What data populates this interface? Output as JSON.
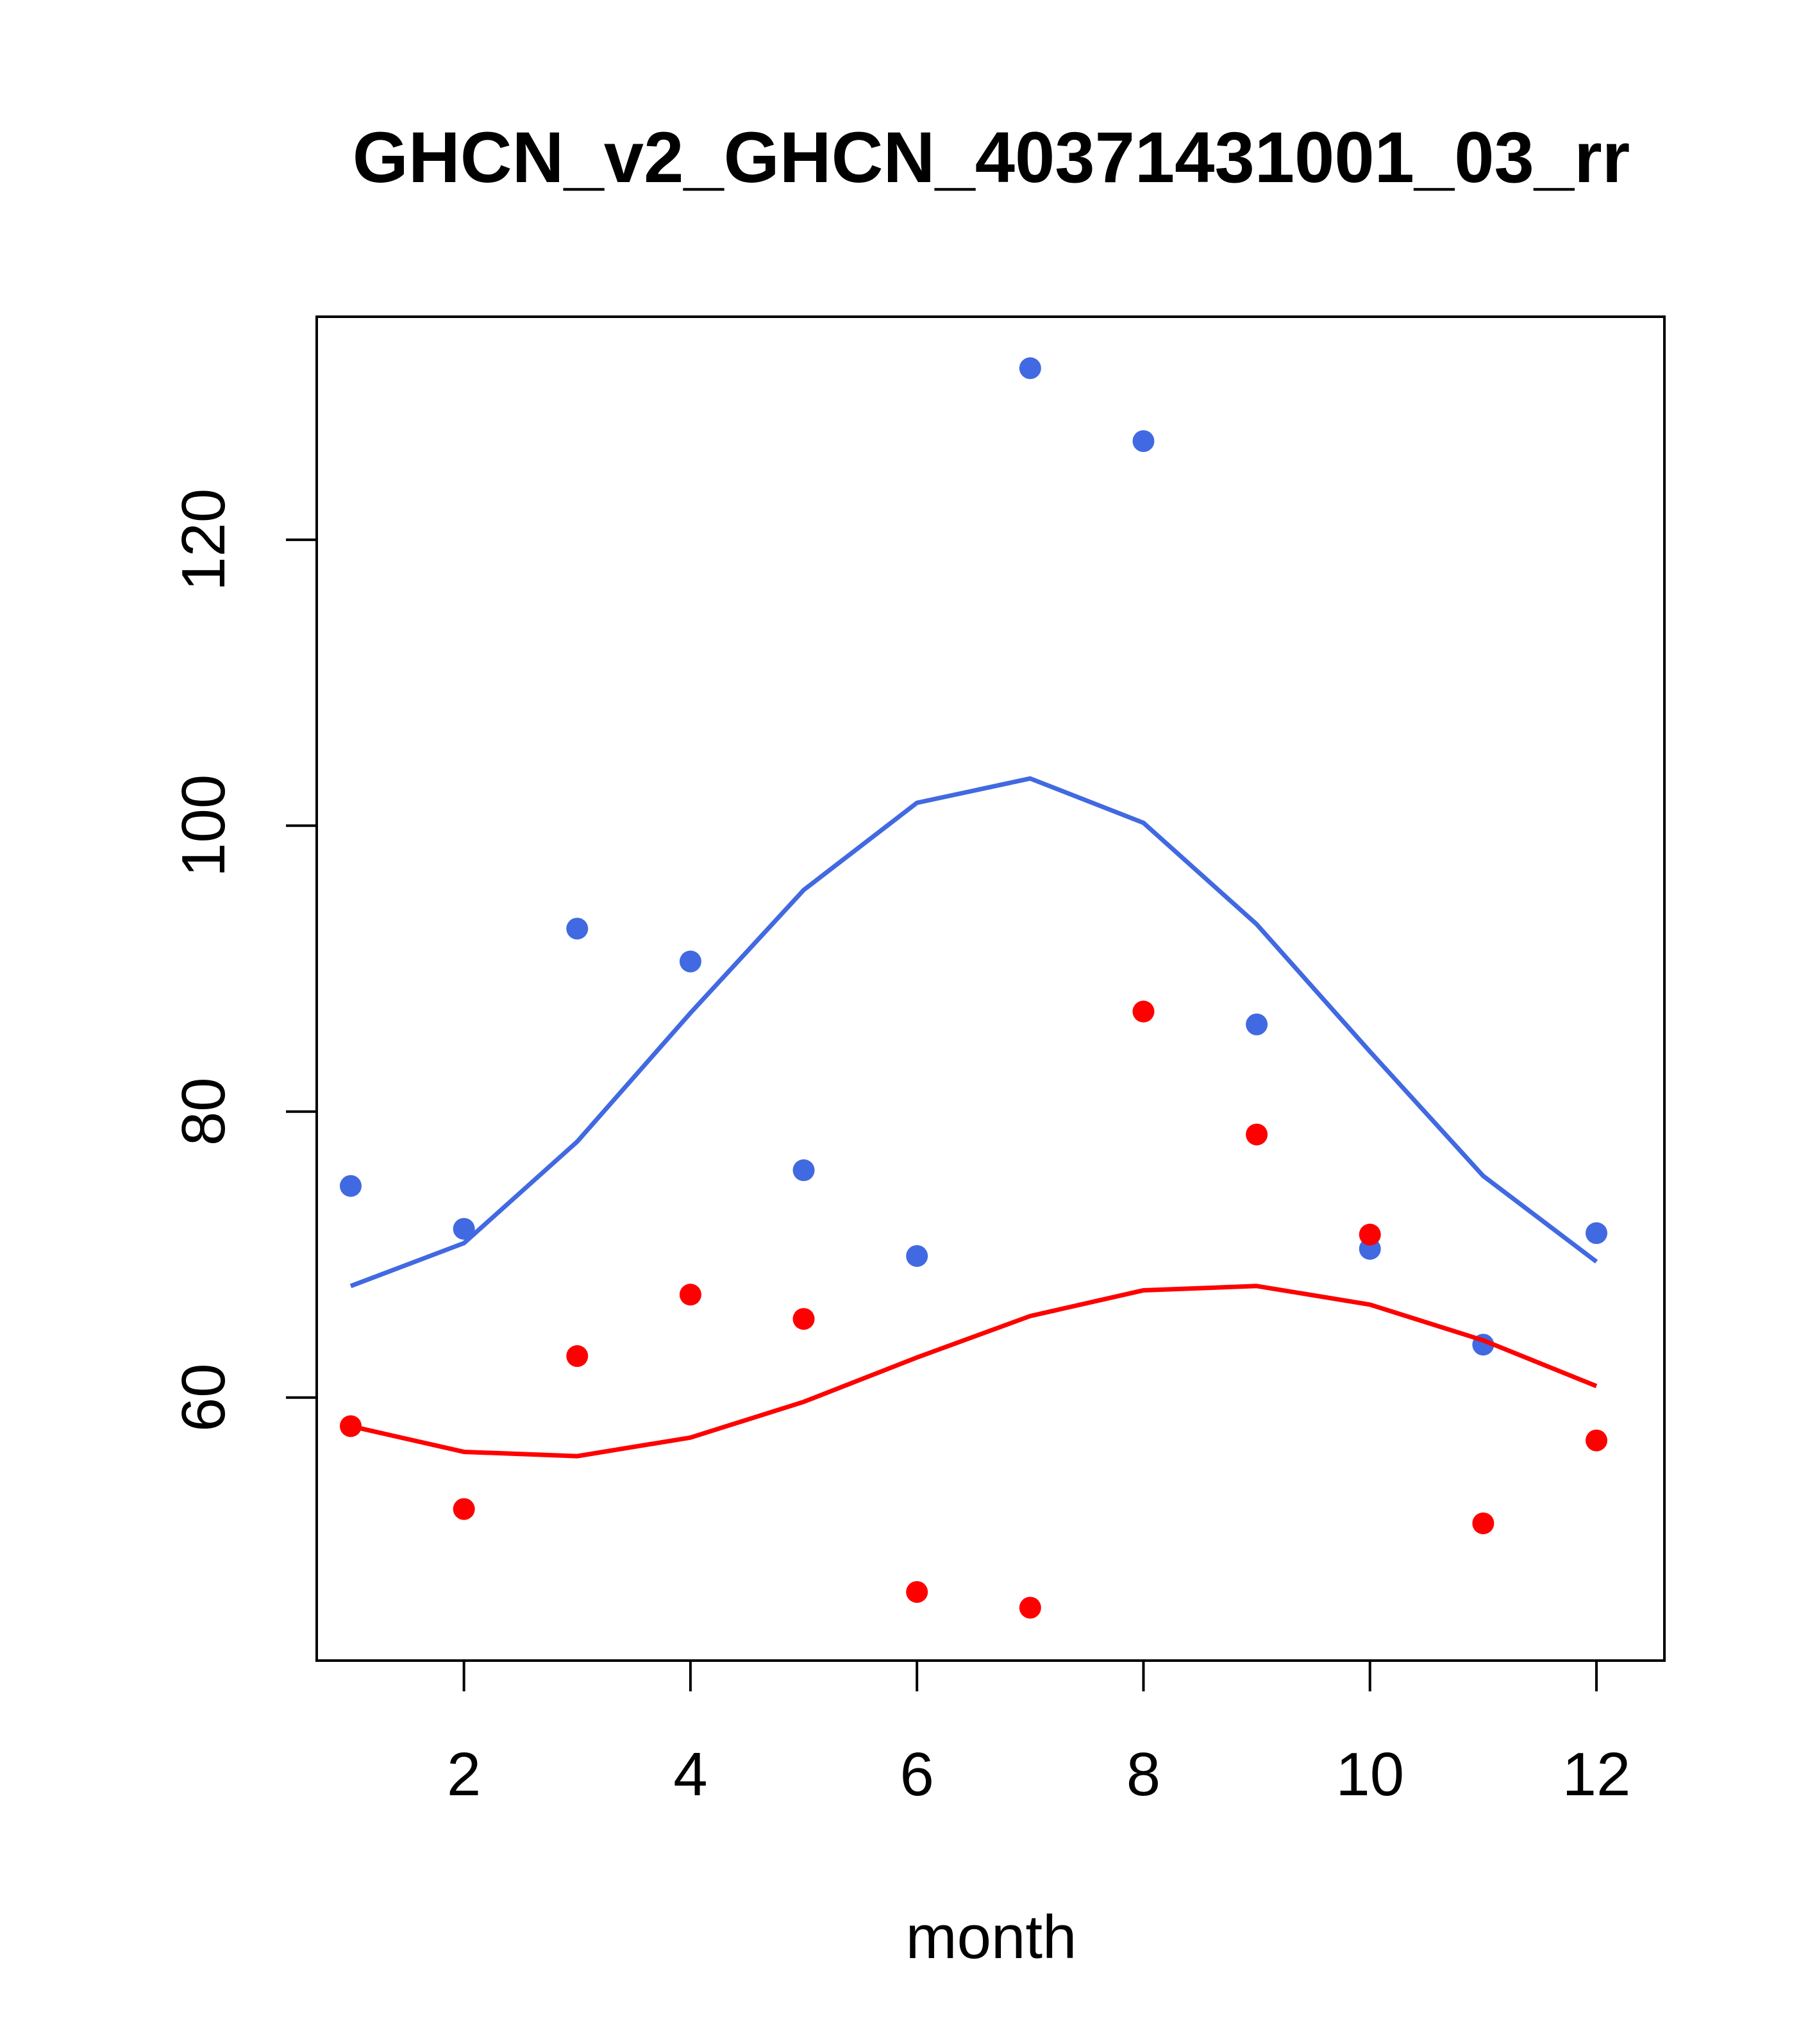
{
  "chart_data": {
    "type": "scatter",
    "title": "GHCN_v2_GHCN_40371431001_03_rr",
    "xlabel": "month",
    "ylabel": "",
    "xlim": [
      0.7,
      12.6
    ],
    "ylim": [
      41.6,
      135.6
    ],
    "x_ticks": [
      2,
      4,
      6,
      8,
      10,
      12
    ],
    "y_ticks": [
      60,
      80,
      100,
      120
    ],
    "grid": false,
    "legend": "none",
    "series": [
      {
        "color": "#4169e1",
        "points_x": [
          1,
          2,
          3,
          4,
          5,
          6,
          7,
          8,
          9,
          10,
          11,
          12
        ],
        "points_y": [
          74.8,
          71.8,
          92.8,
          90.5,
          75.9,
          69.9,
          132.0,
          126.9,
          86.1,
          70.4,
          63.7,
          71.5
        ],
        "line_x": [
          1,
          2,
          3,
          4,
          5,
          6,
          7,
          8,
          9,
          10,
          11,
          12
        ],
        "line_y": [
          67.8,
          70.8,
          77.9,
          86.9,
          95.5,
          101.6,
          103.3,
          100.2,
          93.1,
          84.2,
          75.5,
          69.5
        ]
      },
      {
        "color": "#ff0000",
        "points_x": [
          1,
          2,
          3,
          4,
          5,
          6,
          7,
          8,
          9,
          10,
          11,
          12
        ],
        "points_y": [
          58.0,
          52.2,
          62.9,
          67.2,
          65.5,
          46.4,
          45.3,
          87.0,
          78.4,
          71.4,
          51.2,
          57.0
        ],
        "line_x": [
          1,
          2,
          3,
          4,
          5,
          6,
          7,
          8,
          9,
          10,
          11,
          12
        ],
        "line_y": [
          58.0,
          56.2,
          55.9,
          57.2,
          59.7,
          62.8,
          65.7,
          67.5,
          67.8,
          66.5,
          64.0,
          60.8
        ]
      }
    ]
  }
}
